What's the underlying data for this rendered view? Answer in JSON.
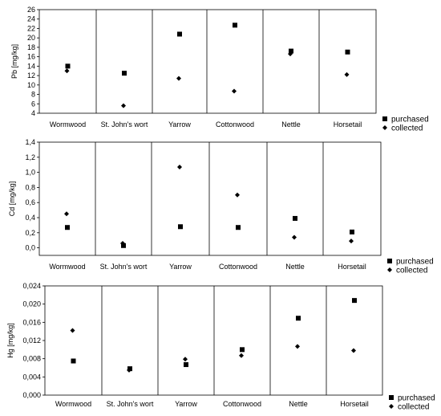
{
  "chart_data": [
    {
      "type": "scatter",
      "ylabel": "Pb [mg/kg]",
      "categories": [
        "Wormwood",
        "St. John's wort",
        "Yarrow",
        "Cottonwood",
        "Nettle",
        "Horsetail"
      ],
      "ylim": [
        4,
        26
      ],
      "yticks": [
        "4",
        "6",
        "8",
        "10",
        "12",
        "14",
        "16",
        "18",
        "20",
        "22",
        "24",
        "26"
      ],
      "series": [
        {
          "name": "purchased",
          "marker": "square",
          "values": [
            14.0,
            12.5,
            20.8,
            22.7,
            17.2,
            17.0
          ]
        },
        {
          "name": "collected",
          "marker": "diamond",
          "values": [
            13.0,
            5.6,
            11.4,
            8.7,
            16.6,
            12.2
          ]
        }
      ]
    },
    {
      "type": "scatter",
      "ylabel": "Cd [mg/kg]",
      "categories": [
        "Wormwood",
        "St. John's wort",
        "Yarrow",
        "Cottonwood",
        "Nettle",
        "Horsetail"
      ],
      "ylim": [
        -0.1,
        1.4
      ],
      "yticks": [
        "0,0",
        "0,2",
        "0,4",
        "0,6",
        "0,8",
        "1,0",
        "1,2",
        "1,4"
      ],
      "series": [
        {
          "name": "purchased",
          "marker": "square",
          "values": [
            0.27,
            0.03,
            0.28,
            0.27,
            0.39,
            0.21
          ]
        },
        {
          "name": "collected",
          "marker": "diamond",
          "values": [
            0.45,
            0.06,
            1.07,
            0.7,
            0.14,
            0.09
          ]
        }
      ]
    },
    {
      "type": "scatter",
      "ylabel": "Hg [mg/kg]",
      "categories": [
        "Wormwood",
        "St. John's wort",
        "Yarrow",
        "Cottonwood",
        "Nettle",
        "Horsetail"
      ],
      "ylim": [
        0,
        0.024
      ],
      "yticks": [
        "0,000",
        "0,004",
        "0,008",
        "0,012",
        "0,016",
        "0,020",
        "0,024"
      ],
      "series": [
        {
          "name": "purchased",
          "marker": "square",
          "values": [
            0.0075,
            0.0058,
            0.0067,
            0.01,
            0.0169,
            0.0208
          ]
        },
        {
          "name": "collected",
          "marker": "diamond",
          "values": [
            0.0142,
            0.0055,
            0.0079,
            0.0087,
            0.0107,
            0.0098
          ]
        }
      ]
    }
  ]
}
